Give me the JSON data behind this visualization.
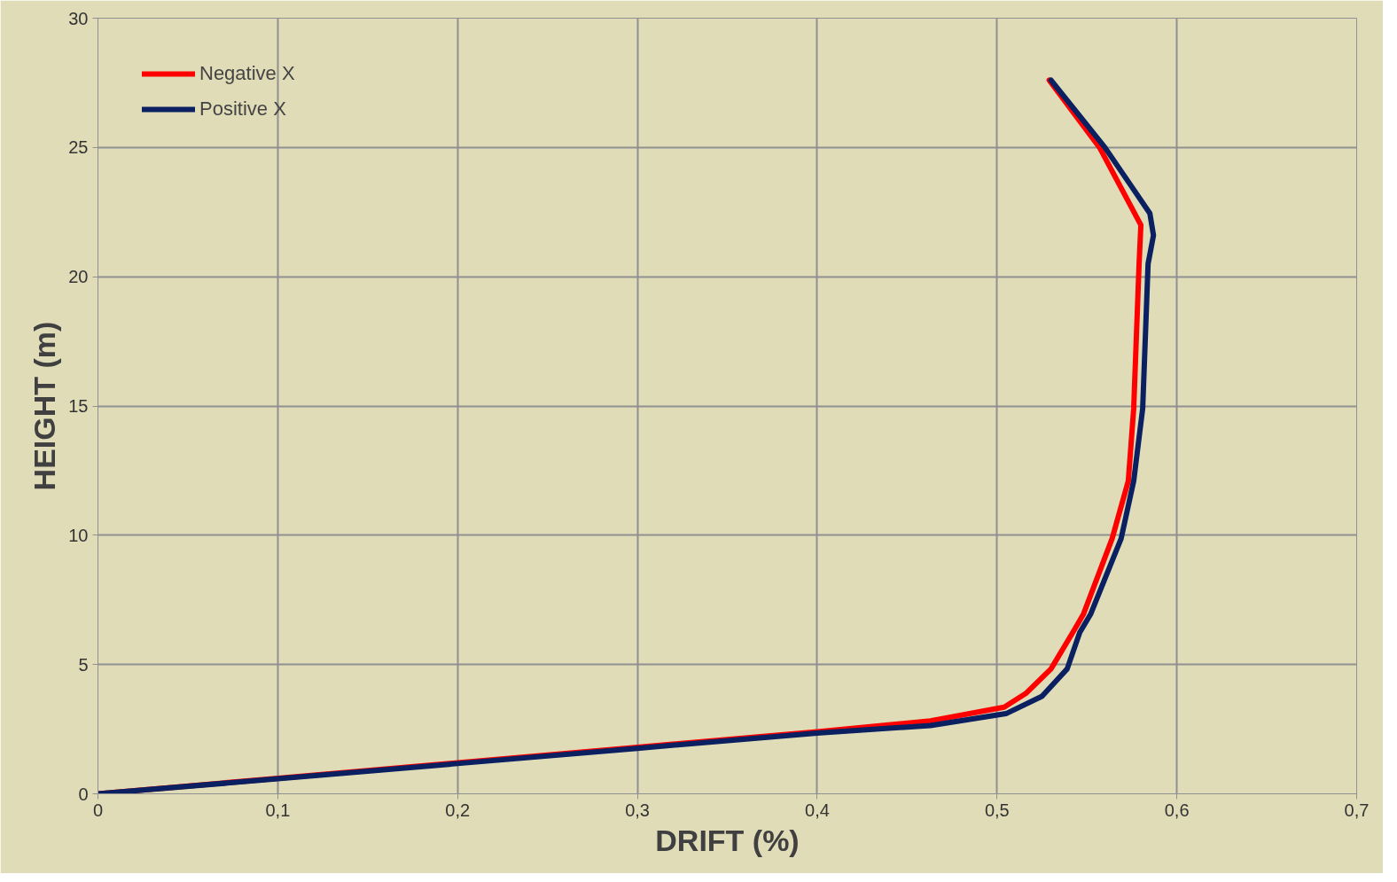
{
  "chart_data": {
    "type": "line",
    "xlabel": "DRIFT (%)",
    "ylabel": "HEIGHT (m)",
    "xlim": [
      0,
      0.7
    ],
    "ylim": [
      0,
      30
    ],
    "xticks": [
      0,
      {
        "value": 0.1,
        "label": "0,1"
      },
      {
        "value": 0.2,
        "label": "0,2"
      },
      {
        "value": 0.3,
        "label": "0,3"
      },
      {
        "value": 0.4,
        "label": "0,4"
      },
      {
        "value": 0.5,
        "label": "0,5"
      },
      {
        "value": 0.6,
        "label": "0,6"
      },
      {
        "value": 0.7,
        "label": "0,7"
      }
    ],
    "yticks": [
      0,
      5,
      10,
      15,
      20,
      25,
      30
    ],
    "grid": true,
    "legend": "top left",
    "marker": "none",
    "line_style": "solid",
    "series": [
      {
        "name": "Negative X",
        "color": "#ff0000",
        "x": [
          0,
          0.1,
          0.2,
          0.3,
          0.4,
          0.463,
          0.504,
          0.516,
          0.53,
          0.543,
          0.548,
          0.564,
          0.573,
          0.576,
          0.579,
          0.58,
          0.557,
          0.529
        ],
        "values": [
          0,
          0.6,
          1.2,
          1.8,
          2.4,
          2.82,
          3.35,
          3.88,
          4.83,
          6.34,
          6.94,
          9.87,
          12.1,
          14.9,
          20.5,
          22.0,
          25.0,
          27.6
        ]
      },
      {
        "name": "Positive X",
        "color": "#0a2060",
        "x": [
          0,
          0.1,
          0.2,
          0.3,
          0.4,
          0.463,
          0.505,
          0.525,
          0.539,
          0.546,
          0.552,
          0.569,
          0.576,
          0.581,
          0.584,
          0.587,
          0.585,
          0.56,
          0.53
        ],
        "values": [
          0,
          0.58,
          1.17,
          1.76,
          2.35,
          2.64,
          3.1,
          3.77,
          4.83,
          6.24,
          6.94,
          9.87,
          12.1,
          14.9,
          20.5,
          21.6,
          22.45,
          25.0,
          27.6
        ]
      }
    ]
  }
}
